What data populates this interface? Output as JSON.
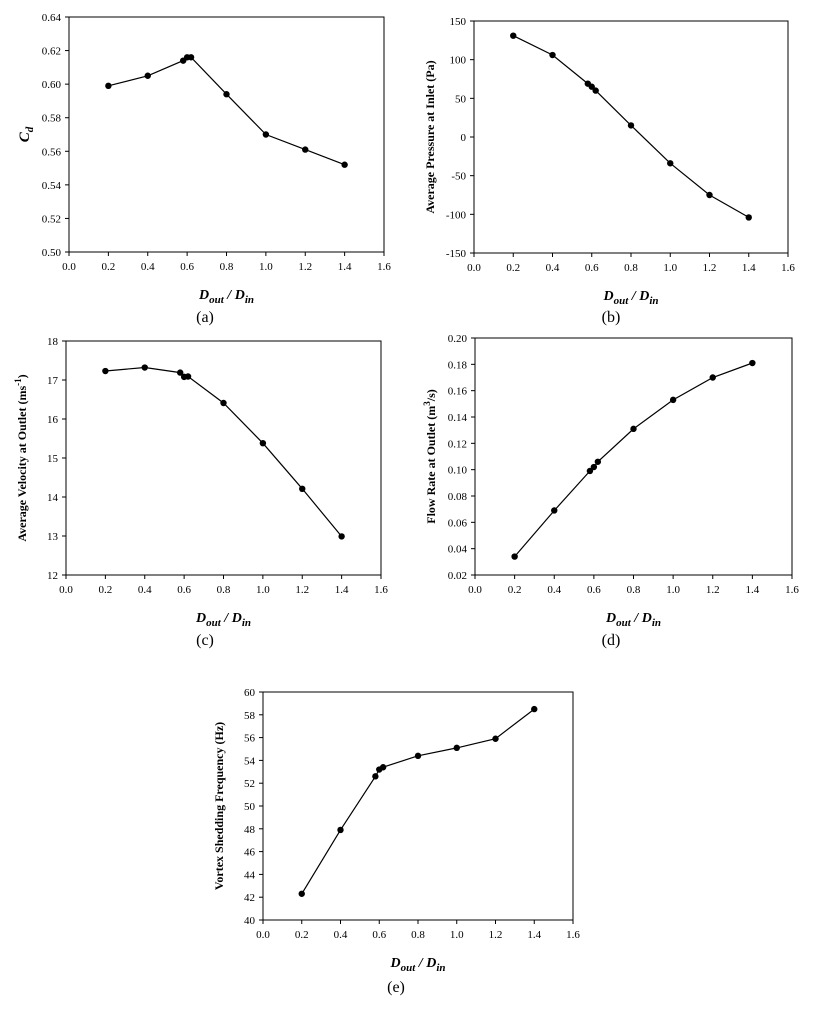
{
  "chart_data": [
    {
      "type": "line",
      "caption": "(a)",
      "title": "",
      "xlabel": {
        "main": "D",
        "sub1": "out",
        "sep": " / ",
        "main2": "D",
        "sub2": "in"
      },
      "ylabel": {
        "main": "C",
        "sub": "d"
      },
      "xlim": [
        0.0,
        1.6
      ],
      "ylim": [
        0.5,
        0.64
      ],
      "xticks": [
        "0.0",
        "0.2",
        "0.4",
        "0.6",
        "0.8",
        "1.0",
        "1.2",
        "1.4",
        "1.6"
      ],
      "yticks": [
        "0.50",
        "0.52",
        "0.54",
        "0.56",
        "0.58",
        "0.60",
        "0.62",
        "0.64"
      ],
      "grid": false,
      "series": [
        {
          "name": "Cd",
          "x": [
            0.2,
            0.4,
            0.58,
            0.6,
            0.62,
            0.8,
            1.0,
            1.2,
            1.4
          ],
          "y": [
            0.599,
            0.605,
            0.614,
            0.616,
            0.616,
            0.594,
            0.57,
            0.561,
            0.552
          ]
        }
      ]
    },
    {
      "type": "line",
      "caption": "(b)",
      "title": "",
      "xlabel": {
        "main": "D",
        "sub1": "out",
        "sep": " / ",
        "main2": "D",
        "sub2": "in"
      },
      "ylabel": {
        "main": "Average Pressure at Inlet (Pa)"
      },
      "xlim": [
        0.0,
        1.6
      ],
      "ylim": [
        -150,
        150
      ],
      "xticks": [
        "0.0",
        "0.2",
        "0.4",
        "0.6",
        "0.8",
        "1.0",
        "1.2",
        "1.4",
        "1.6"
      ],
      "yticks": [
        "-150",
        "-100",
        "-50",
        "0",
        "50",
        "100",
        "150"
      ],
      "grid": false,
      "series": [
        {
          "name": "Average Pressure at Inlet",
          "x": [
            0.2,
            0.4,
            0.58,
            0.6,
            0.62,
            0.8,
            1.0,
            1.2,
            1.4
          ],
          "y": [
            131,
            106,
            69,
            65,
            60,
            15,
            -34,
            -75,
            -104
          ]
        }
      ]
    },
    {
      "type": "line",
      "caption": "(c)",
      "title": "",
      "xlabel": {
        "main": "D",
        "sub1": "out",
        "sep": " / ",
        "main2": "D",
        "sub2": "in"
      },
      "ylabel": {
        "main": "Average Velocity at Outlet (ms",
        "sup": "-1",
        "tail": ")"
      },
      "xlim": [
        0.0,
        1.6
      ],
      "ylim": [
        12,
        18
      ],
      "xticks": [
        "0.0",
        "0.2",
        "0.4",
        "0.6",
        "0.8",
        "1.0",
        "1.2",
        "1.4",
        "1.6"
      ],
      "yticks": [
        "12",
        "13",
        "14",
        "15",
        "16",
        "17",
        "18"
      ],
      "grid": false,
      "series": [
        {
          "name": "Average Velocity at Outlet",
          "x": [
            0.2,
            0.4,
            0.58,
            0.6,
            0.62,
            0.8,
            1.0,
            1.2,
            1.4
          ],
          "y": [
            17.23,
            17.32,
            17.19,
            17.08,
            17.09,
            16.41,
            15.38,
            14.21,
            12.99
          ]
        }
      ]
    },
    {
      "type": "line",
      "caption": "(d)",
      "title": "",
      "xlabel": {
        "main": "D",
        "sub1": "out",
        "sep": " / ",
        "main2": "D",
        "sub2": "in"
      },
      "ylabel": {
        "main": "Flow Rate at Outlet (m",
        "sup": "3",
        "tail": "/s)"
      },
      "xlim": [
        0.0,
        1.6
      ],
      "ylim": [
        0.02,
        0.2
      ],
      "xticks": [
        "0.0",
        "0.2",
        "0.4",
        "0.6",
        "0.8",
        "1.0",
        "1.2",
        "1.4",
        "1.6"
      ],
      "yticks": [
        "0.02",
        "0.04",
        "0.06",
        "0.08",
        "0.10",
        "0.12",
        "0.14",
        "0.16",
        "0.18",
        "0.20"
      ],
      "grid": false,
      "series": [
        {
          "name": "Flow Rate at Outlet",
          "x": [
            0.2,
            0.4,
            0.58,
            0.6,
            0.62,
            0.8,
            1.0,
            1.2,
            1.4
          ],
          "y": [
            0.034,
            0.069,
            0.099,
            0.102,
            0.106,
            0.131,
            0.153,
            0.17,
            0.181
          ]
        }
      ]
    },
    {
      "type": "line",
      "caption": "(e)",
      "title": "",
      "xlabel": {
        "main": "D",
        "sub1": "out",
        "sep": " / ",
        "main2": "D",
        "sub2": "in"
      },
      "ylabel": {
        "main": "Vortex Shedding Frequency (Hz)"
      },
      "xlim": [
        0.0,
        1.6
      ],
      "ylim": [
        40,
        60
      ],
      "xticks": [
        "0.0",
        "0.2",
        "0.4",
        "0.6",
        "0.8",
        "1.0",
        "1.2",
        "1.4",
        "1.6"
      ],
      "yticks": [
        "40",
        "42",
        "44",
        "46",
        "48",
        "50",
        "52",
        "54",
        "56",
        "58",
        "60"
      ],
      "grid": false,
      "series": [
        {
          "name": "Vortex Shedding Frequency",
          "x": [
            0.2,
            0.4,
            0.58,
            0.6,
            0.62,
            0.8,
            1.0,
            1.2,
            1.4
          ],
          "y": [
            42.3,
            47.9,
            52.6,
            53.2,
            53.4,
            54.4,
            55.1,
            55.9,
            58.5
          ]
        }
      ]
    }
  ]
}
